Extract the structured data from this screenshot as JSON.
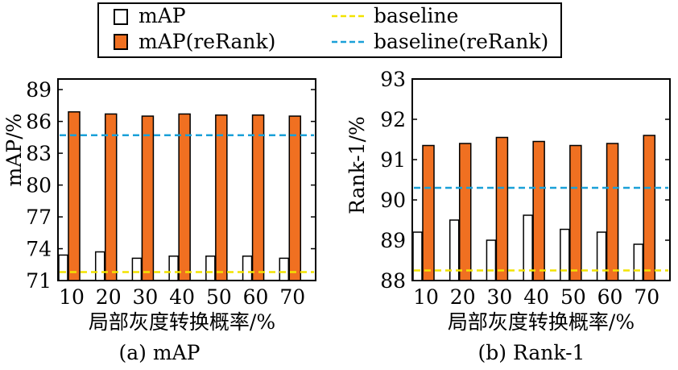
{
  "legend": {
    "entries": [
      {
        "label": "mAP",
        "kind": "bar",
        "color": "#ffffff",
        "stroke": "#000000"
      },
      {
        "label": "mAP(reRank)",
        "kind": "bar",
        "color": "#f07021",
        "stroke": "#000000"
      },
      {
        "label": "baseline",
        "kind": "dashed-line",
        "color": "#f2e300"
      },
      {
        "label": "baseline(reRank)",
        "kind": "dashed-line",
        "color": "#1aa0d8"
      }
    ]
  },
  "chart_data": [
    {
      "type": "bar",
      "caption": "(a) mAP",
      "xlabel": "局部灰度转换概率/%",
      "ylabel": "mAP/%",
      "categories": [
        "10",
        "20",
        "30",
        "40",
        "50",
        "60",
        "70"
      ],
      "ylim": [
        71,
        90
      ],
      "yticks": [
        71,
        74,
        77,
        80,
        83,
        86,
        89
      ],
      "series": [
        {
          "name": "mAP",
          "values": [
            73.4,
            73.7,
            73.1,
            73.3,
            73.3,
            73.3,
            73.1
          ]
        },
        {
          "name": "mAP(reRank)",
          "values": [
            86.9,
            86.7,
            86.5,
            86.7,
            86.6,
            86.6,
            86.5
          ]
        }
      ],
      "baselines": [
        {
          "name": "baseline",
          "value": 71.8
        },
        {
          "name": "baseline(reRank)",
          "value": 84.7
        }
      ]
    },
    {
      "type": "bar",
      "caption": "(b) Rank-1",
      "xlabel": "局部灰度转换概率/%",
      "ylabel": "Rank-1/%",
      "categories": [
        "10",
        "20",
        "30",
        "40",
        "50",
        "60",
        "70"
      ],
      "ylim": [
        88,
        93
      ],
      "yticks": [
        88,
        89,
        90,
        91,
        92,
        93
      ],
      "series": [
        {
          "name": "mAP",
          "values": [
            89.2,
            89.5,
            89.0,
            89.62,
            89.27,
            89.2,
            88.9
          ]
        },
        {
          "name": "mAP(reRank)",
          "values": [
            91.35,
            91.4,
            91.55,
            91.45,
            91.35,
            91.4,
            91.6
          ]
        }
      ],
      "baselines": [
        {
          "name": "baseline",
          "value": 88.25
        },
        {
          "name": "baseline(reRank)",
          "value": 90.3
        }
      ]
    }
  ]
}
